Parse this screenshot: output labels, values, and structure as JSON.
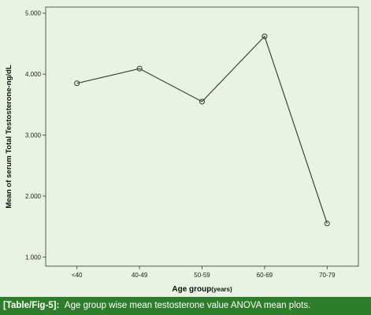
{
  "chart_data": {
    "type": "line",
    "title": "",
    "xlabel": "Age group",
    "xlabel_unit": "(years)",
    "ylabel": "Mean of serum Total Testosterone-ng/dL",
    "categories": [
      "<40",
      "40-49",
      "50-59",
      "60-69",
      "70-79"
    ],
    "values": [
      3.85,
      4.09,
      3.55,
      4.62,
      1.55
    ],
    "ylim": [
      0.85,
      5.1
    ],
    "yticks": [
      1.0,
      2.0,
      3.0,
      4.0,
      5.0
    ],
    "ytick_labels": [
      "1.000",
      "2.000",
      "3.000",
      "4.000",
      "5.000"
    ],
    "grid": false,
    "marker": "open-circle",
    "colors": {
      "line": "#333333",
      "plot_background": "#e9f3e3",
      "caption_background": "#2e7d2a",
      "caption_text": "#ffffff"
    }
  },
  "caption": {
    "tag": "[Table/Fig-5]:",
    "text": "Age group wise mean testosterone value ANOVA mean plots."
  }
}
